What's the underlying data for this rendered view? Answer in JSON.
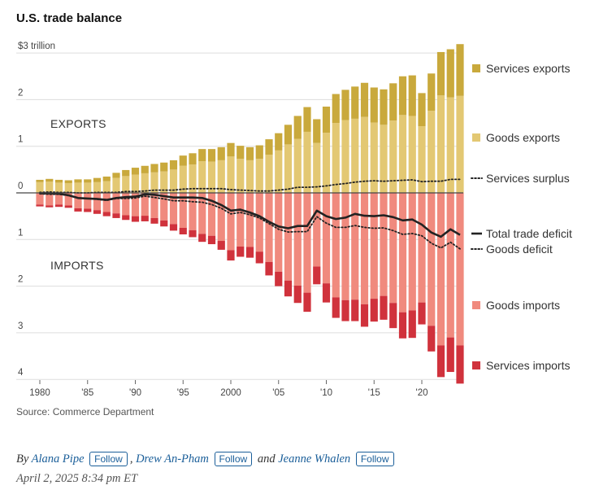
{
  "title": "U.S. trade balance",
  "source": "Source: Commerce Department",
  "byline": {
    "prefix": "By",
    "authors": [
      "Alana Pipe",
      "Drew An-Pham",
      "Jeanne Whalen"
    ],
    "separator": ",",
    "conjunction": "and",
    "follow_label": "Follow"
  },
  "date": "April 2, 2025 8:34 pm ET",
  "colors": {
    "services_exports": "#c9a93c",
    "goods_exports": "#e3c873",
    "goods_imports": "#f08a7e",
    "services_imports": "#d0323c",
    "total_trade_deficit": "#222222",
    "grid": "#dddddd"
  },
  "chart_data": {
    "type": "bar",
    "x": [
      1980,
      1981,
      1982,
      1983,
      1984,
      1985,
      1986,
      1987,
      1988,
      1989,
      1990,
      1991,
      1992,
      1993,
      1994,
      1995,
      1996,
      1997,
      1998,
      1999,
      2000,
      2001,
      2002,
      2003,
      2004,
      2005,
      2006,
      2007,
      2008,
      2009,
      2010,
      2011,
      2012,
      2013,
      2014,
      2015,
      2016,
      2017,
      2018,
      2019,
      2020,
      2021,
      2022,
      2023,
      2024
    ],
    "x_tick_labels": [
      {
        "year": 1980,
        "label": "1980"
      },
      {
        "year": 1985,
        "label": "'85"
      },
      {
        "year": 1990,
        "label": "'90"
      },
      {
        "year": 1995,
        "label": "'95"
      },
      {
        "year": 2000,
        "label": "2000"
      },
      {
        "year": 2005,
        "label": "'05"
      },
      {
        "year": 2010,
        "label": "'10"
      },
      {
        "year": 2015,
        "label": "'15"
      },
      {
        "year": 2020,
        "label": "'20"
      }
    ],
    "y_ticks": [
      {
        "value": 3,
        "label": "$3 trillion"
      },
      {
        "value": 2,
        "label": "2"
      },
      {
        "value": 1,
        "label": "1"
      },
      {
        "value": 0,
        "label": "0"
      },
      {
        "value": -1,
        "label": "1"
      },
      {
        "value": -2,
        "label": "2"
      },
      {
        "value": -3,
        "label": "3"
      },
      {
        "value": -4,
        "label": "4"
      }
    ],
    "ylim": [
      -4.1,
      3.2
    ],
    "annotations": [
      "EXPORTS",
      "IMPORTS"
    ],
    "bar_series": [
      {
        "name": "Services exports",
        "color_key": "services_exports",
        "direction": "up",
        "stack_order": 2,
        "values": [
          0.05,
          0.06,
          0.06,
          0.06,
          0.07,
          0.07,
          0.09,
          0.1,
          0.11,
          0.13,
          0.15,
          0.16,
          0.18,
          0.19,
          0.2,
          0.22,
          0.24,
          0.26,
          0.27,
          0.28,
          0.29,
          0.28,
          0.28,
          0.29,
          0.33,
          0.37,
          0.42,
          0.49,
          0.53,
          0.51,
          0.56,
          0.62,
          0.65,
          0.69,
          0.73,
          0.75,
          0.76,
          0.8,
          0.83,
          0.87,
          0.71,
          0.8,
          0.93,
          1.03,
          1.11
        ]
      },
      {
        "name": "Goods exports",
        "color_key": "goods_exports",
        "direction": "up",
        "stack_order": 1,
        "values": [
          0.23,
          0.24,
          0.22,
          0.21,
          0.22,
          0.22,
          0.23,
          0.25,
          0.32,
          0.36,
          0.39,
          0.42,
          0.44,
          0.46,
          0.5,
          0.58,
          0.61,
          0.68,
          0.67,
          0.7,
          0.78,
          0.73,
          0.7,
          0.73,
          0.82,
          0.91,
          1.04,
          1.16,
          1.31,
          1.07,
          1.29,
          1.5,
          1.56,
          1.59,
          1.63,
          1.51,
          1.46,
          1.55,
          1.67,
          1.65,
          1.43,
          1.76,
          2.09,
          2.05,
          2.08
        ]
      },
      {
        "name": "Goods imports",
        "color_key": "goods_imports",
        "direction": "down",
        "stack_order": 1,
        "values": [
          0.25,
          0.27,
          0.25,
          0.27,
          0.33,
          0.34,
          0.37,
          0.41,
          0.44,
          0.48,
          0.5,
          0.49,
          0.54,
          0.59,
          0.67,
          0.75,
          0.8,
          0.88,
          0.92,
          1.03,
          1.23,
          1.15,
          1.16,
          1.26,
          1.48,
          1.69,
          1.88,
          1.99,
          2.14,
          1.58,
          1.94,
          2.24,
          2.3,
          2.29,
          2.39,
          2.27,
          2.21,
          2.36,
          2.56,
          2.52,
          2.35,
          2.85,
          3.27,
          3.1,
          3.27
        ]
      },
      {
        "name": "Services imports",
        "color_key": "services_imports",
        "direction": "down",
        "stack_order": 2,
        "values": [
          0.04,
          0.04,
          0.05,
          0.05,
          0.07,
          0.07,
          0.08,
          0.09,
          0.1,
          0.1,
          0.12,
          0.12,
          0.12,
          0.13,
          0.14,
          0.14,
          0.15,
          0.17,
          0.18,
          0.19,
          0.22,
          0.22,
          0.23,
          0.25,
          0.29,
          0.31,
          0.34,
          0.37,
          0.41,
          0.38,
          0.41,
          0.44,
          0.45,
          0.46,
          0.48,
          0.49,
          0.51,
          0.54,
          0.56,
          0.59,
          0.47,
          0.55,
          0.68,
          0.74,
          0.82
        ]
      }
    ],
    "line_series": [
      {
        "name": "Services surplus",
        "style": "dotted",
        "values": [
          0.01,
          0.02,
          0.01,
          0.01,
          0.0,
          0.0,
          0.01,
          0.01,
          0.01,
          0.03,
          0.03,
          0.04,
          0.06,
          0.06,
          0.06,
          0.08,
          0.09,
          0.09,
          0.09,
          0.09,
          0.07,
          0.06,
          0.05,
          0.04,
          0.04,
          0.06,
          0.08,
          0.12,
          0.12,
          0.13,
          0.15,
          0.18,
          0.2,
          0.23,
          0.25,
          0.26,
          0.25,
          0.26,
          0.27,
          0.28,
          0.24,
          0.25,
          0.25,
          0.29,
          0.29
        ]
      },
      {
        "name": "Total trade deficit",
        "style": "solid",
        "values": [
          -0.01,
          -0.01,
          -0.02,
          -0.05,
          -0.11,
          -0.12,
          -0.13,
          -0.15,
          -0.11,
          -0.09,
          -0.08,
          -0.03,
          -0.04,
          -0.07,
          -0.1,
          -0.1,
          -0.1,
          -0.11,
          -0.17,
          -0.26,
          -0.38,
          -0.36,
          -0.42,
          -0.5,
          -0.62,
          -0.72,
          -0.76,
          -0.71,
          -0.71,
          -0.38,
          -0.5,
          -0.56,
          -0.53,
          -0.45,
          -0.49,
          -0.5,
          -0.48,
          -0.52,
          -0.59,
          -0.57,
          -0.68,
          -0.85,
          -0.94,
          -0.78,
          -0.9
        ]
      },
      {
        "name": "Goods deficit",
        "style": "dotted",
        "values": [
          -0.02,
          -0.03,
          -0.03,
          -0.06,
          -0.11,
          -0.12,
          -0.14,
          -0.16,
          -0.12,
          -0.12,
          -0.11,
          -0.07,
          -0.1,
          -0.13,
          -0.17,
          -0.17,
          -0.19,
          -0.2,
          -0.25,
          -0.33,
          -0.45,
          -0.42,
          -0.47,
          -0.54,
          -0.66,
          -0.78,
          -0.84,
          -0.83,
          -0.83,
          -0.51,
          -0.65,
          -0.74,
          -0.74,
          -0.7,
          -0.74,
          -0.76,
          -0.75,
          -0.81,
          -0.89,
          -0.87,
          -0.92,
          -1.08,
          -1.18,
          -1.06,
          -1.2
        ]
      }
    ],
    "legend": [
      {
        "label": "Services exports",
        "marker": "square",
        "color_key": "services_exports"
      },
      {
        "label": "Goods exports",
        "marker": "square",
        "color_key": "goods_exports"
      },
      {
        "label": "Services surplus",
        "marker": "dotted-line"
      },
      {
        "label": "Total trade deficit",
        "marker": "solid-line"
      },
      {
        "label": "Goods deficit",
        "marker": "dotted-line"
      },
      {
        "label": "Goods imports",
        "marker": "square",
        "color_key": "goods_imports"
      },
      {
        "label": "Services imports",
        "marker": "square",
        "color_key": "services_imports"
      }
    ],
    "legend_placement": "right",
    "grid": true
  }
}
